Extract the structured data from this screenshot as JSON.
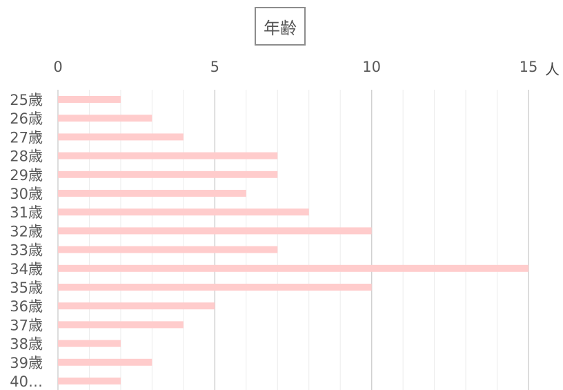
{
  "chart_data": {
    "type": "bar",
    "orientation": "horizontal",
    "title": "年齢",
    "unit_label": "人",
    "categories": [
      "25歳",
      "26歳",
      "27歳",
      "28歳",
      "29歳",
      "30歳",
      "31歳",
      "32歳",
      "33歳",
      "34歳",
      "35歳",
      "36歳",
      "37歳",
      "38歳",
      "39歳",
      "40…"
    ],
    "values": [
      2,
      3,
      4,
      7,
      7,
      6,
      8,
      10,
      7,
      15,
      10,
      5,
      4,
      2,
      3,
      2
    ],
    "xlim": [
      0,
      15
    ],
    "xticks": [
      "0",
      "5",
      "10",
      "15"
    ],
    "grid": true,
    "bar_color": "#ffcccc",
    "major_grid_color": "#d0d0d0",
    "minor_grid_color": "#ececec"
  }
}
